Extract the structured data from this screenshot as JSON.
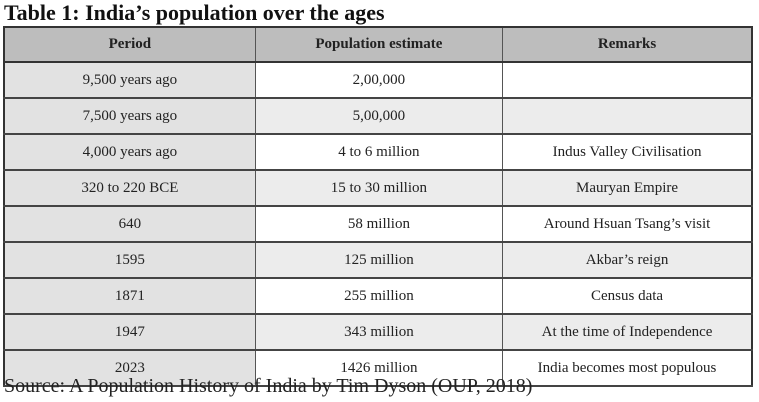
{
  "title": "Table 1: India’s population over the ages",
  "table": {
    "headers": [
      "Period",
      "Population estimate",
      "Remarks"
    ],
    "rows": [
      [
        "9,500 years ago",
        "2,00,000",
        ""
      ],
      [
        "7,500 years ago",
        "5,00,000",
        ""
      ],
      [
        "4,000 years ago",
        "4 to 6 million",
        "Indus Valley Civilisation"
      ],
      [
        "320 to 220 BCE",
        "15 to 30 million",
        "Mauryan Empire"
      ],
      [
        "640",
        "58 million",
        "Around Hsuan Tsang’s visit"
      ],
      [
        "1595",
        "125 million",
        "Akbar’s reign"
      ],
      [
        "1871",
        "255 million",
        "Census data"
      ],
      [
        "1947",
        "343 million",
        "At the time of Independence"
      ],
      [
        "2023",
        "1426 million",
        "India becomes most populous"
      ]
    ]
  },
  "source": "Source: A Population History of India by Tim Dyson (OUP, 2018)",
  "colors": {
    "header_bg": "#bdbdbd",
    "period_bg": "#e2e2e2",
    "alt_row_bg": "#ececec"
  }
}
